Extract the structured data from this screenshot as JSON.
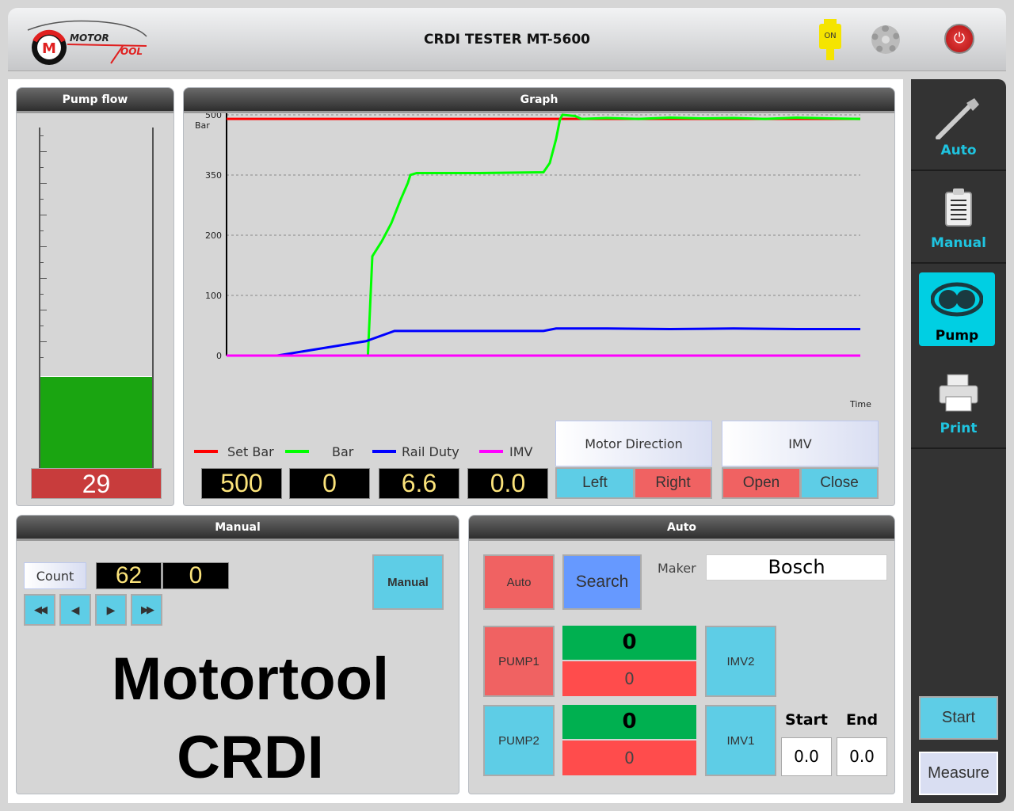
{
  "header": {
    "title": "CRDI TESTER MT-5600",
    "logo_text": "MOTOR TOOL",
    "usb_status": "ON",
    "icons": [
      "usb-on-icon",
      "gear-icon",
      "power-icon"
    ]
  },
  "pump_flow": {
    "title": "Pump flow",
    "value": "29",
    "level_fraction": 0.27,
    "fill_color": "#1aa511"
  },
  "graph": {
    "title": "Graph"
  },
  "chart_data": {
    "type": "line",
    "ylabel": "Bar",
    "xlabel": "Time",
    "yticks": [
      0,
      100,
      200,
      350,
      500
    ],
    "y_scale": "piecewise (ticks equally spaced)",
    "grid": "horizontal dashed",
    "legend_placement": "bottom-left",
    "series": [
      {
        "name": "Set Bar",
        "color": "#ff0000",
        "points": [
          [
            0,
            490
          ],
          [
            100,
            490
          ]
        ]
      },
      {
        "name": "Bar",
        "color": "#00ff00",
        "points": [
          [
            22,
            0
          ],
          [
            22.3,
            0
          ],
          [
            22.6,
            70
          ],
          [
            23,
            165
          ],
          [
            24.5,
            190
          ],
          [
            26,
            230
          ],
          [
            27.5,
            290
          ],
          [
            28.6,
            330
          ],
          [
            29,
            350
          ],
          [
            30,
            355
          ],
          [
            40,
            355
          ],
          [
            50,
            357
          ],
          [
            51,
            380
          ],
          [
            52,
            440
          ],
          [
            52.6,
            488
          ],
          [
            53,
            500
          ],
          [
            55,
            497
          ],
          [
            56,
            490
          ],
          [
            60,
            492
          ],
          [
            65,
            490
          ],
          [
            70,
            493
          ],
          [
            75,
            491
          ],
          [
            80,
            492
          ],
          [
            85,
            490
          ],
          [
            90,
            493
          ],
          [
            95,
            491
          ],
          [
            100,
            490
          ]
        ]
      },
      {
        "name": "Rail Duty",
        "color": "#0000ff",
        "points": [
          [
            8,
            0
          ],
          [
            15,
            12
          ],
          [
            22,
            24
          ],
          [
            26.5,
            41
          ],
          [
            50,
            41
          ],
          [
            52,
            45
          ],
          [
            60,
            45
          ],
          [
            70,
            44
          ],
          [
            80,
            45
          ],
          [
            90,
            44
          ],
          [
            100,
            44
          ]
        ]
      },
      {
        "name": "IMV",
        "color": "#ff00ff",
        "points": [
          [
            0,
            0
          ],
          [
            100,
            0
          ]
        ]
      }
    ]
  },
  "readouts": {
    "set_bar": "500",
    "bar": "0",
    "rail_duty": "6.6",
    "imv": "0.0"
  },
  "motor_direction": {
    "label": "Motor Direction",
    "left": "Left",
    "right": "Right"
  },
  "imv": {
    "label": "IMV",
    "open": "Open",
    "close": "Close"
  },
  "manual": {
    "title": "Manual",
    "count_label": "Count",
    "count_value": "62",
    "count_value2": "0",
    "manual_button": "Manual",
    "nav": [
      "◀◀",
      "◀",
      "▶",
      "▶▶"
    ],
    "brand_line1": "Motortool",
    "brand_line2": "CRDI"
  },
  "auto": {
    "title": "Auto",
    "auto_button": "Auto",
    "search_button": "Search",
    "maker_label": "Maker",
    "maker_value": "Bosch",
    "pump1": {
      "label": "PUMP1",
      "top": "0",
      "bottom": "0"
    },
    "pump2": {
      "label": "PUMP2",
      "top": "0",
      "bottom": "0"
    },
    "imv2": "IMV2",
    "imv1": "IMV1",
    "start_label": "Start",
    "end_label": "End",
    "start_value": "0.0",
    "end_value": "0.0"
  },
  "sidebar": {
    "items": [
      {
        "label": "Auto",
        "icon": "injector-icon"
      },
      {
        "label": "Manual",
        "icon": "clipboard-icon"
      },
      {
        "label": "Pump",
        "icon": "pump-icon",
        "active": true
      },
      {
        "label": "Print",
        "icon": "printer-icon"
      }
    ],
    "start": "Start",
    "measure": "Measure"
  },
  "colors": {
    "accent": "#1fc4e0",
    "cyan_button": "#5ecde6",
    "red_button": "#f06262",
    "blue_button": "#6699ff",
    "green_value": "#00b050",
    "red_value": "#ff4c4c"
  }
}
